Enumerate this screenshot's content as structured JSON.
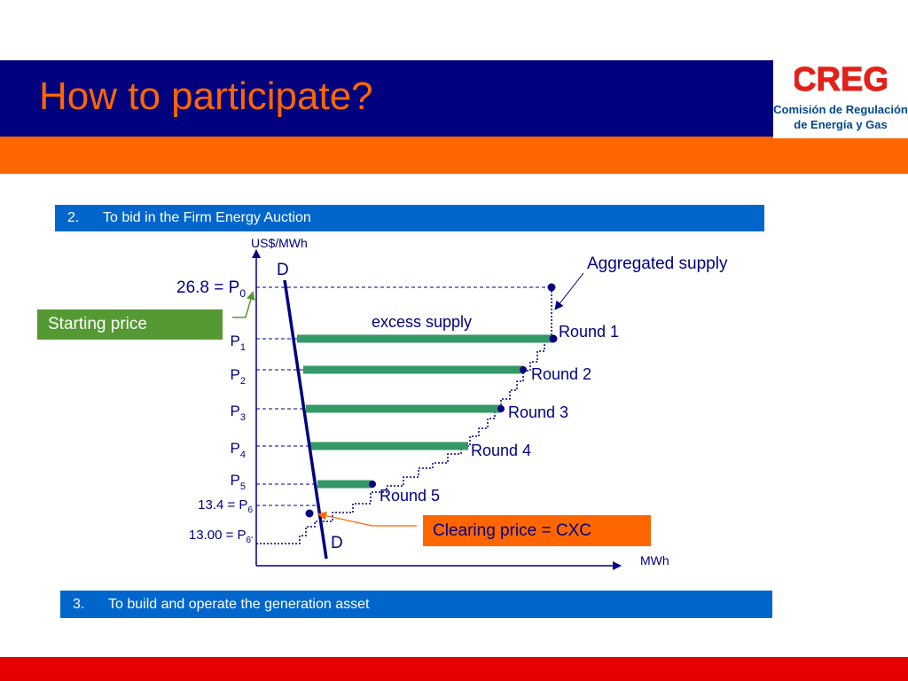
{
  "slide": {
    "title": "How to participate?",
    "logo": {
      "wordmark": "CREG",
      "line1": "Comisión de Regulación",
      "line2": "de Energía y Gas"
    }
  },
  "sections": [
    {
      "number": "2.",
      "text": "To bid in the Firm Energy Auction"
    },
    {
      "number": "3.",
      "text": "To build and operate the generation asset"
    }
  ],
  "diagram": {
    "y_axis_label": "US$/MWh",
    "x_axis_label": "MWh",
    "demand_label_top": "D",
    "demand_label_bottom": "D",
    "aggregated_supply_label": "Aggregated supply",
    "excess_supply_label": "excess supply",
    "starting_price_callout": "Starting price",
    "clearing_price_callout": "Clearing price = CXC",
    "price_levels": [
      {
        "prefix": "26.8 = P",
        "sub": "0"
      },
      {
        "prefix": "P",
        "sub": "1"
      },
      {
        "prefix": "P",
        "sub": "2"
      },
      {
        "prefix": "P",
        "sub": "3"
      },
      {
        "prefix": "P",
        "sub": "4"
      },
      {
        "prefix": "P",
        "sub": "5"
      },
      {
        "prefix": "13.4 = P",
        "sub": "6"
      },
      {
        "prefix": "13.00 = P",
        "sub": "6'"
      }
    ],
    "rounds": [
      "Round 1",
      "Round 2",
      "Round 3",
      "Round 4",
      "Round 5"
    ]
  },
  "colors": {
    "navy": "#00007f",
    "orange": "#ff6600",
    "green": "#339966",
    "blue": "#0066cc",
    "red": "#e60000"
  }
}
